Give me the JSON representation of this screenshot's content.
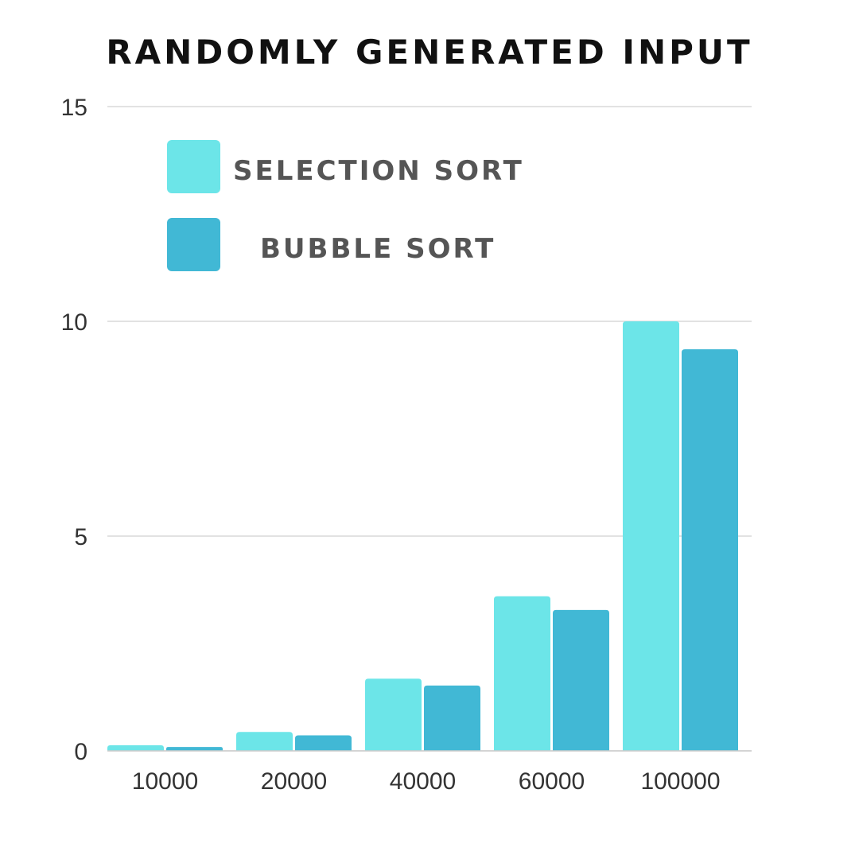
{
  "chart_data": {
    "type": "bar",
    "title": "RANDOMLY GENERATED INPUT",
    "xlabel": "",
    "ylabel": "",
    "categories": [
      "10000",
      "20000",
      "40000",
      "60000",
      "100000"
    ],
    "series": [
      {
        "name": "SELECTION SORT",
        "color": "#6ce5e8",
        "values": [
          0.13,
          0.44,
          1.68,
          3.6,
          10.0
        ]
      },
      {
        "name": "BUBBLE SORT",
        "color": "#41b8d5",
        "values": [
          0.09,
          0.36,
          1.52,
          3.28,
          9.35
        ]
      }
    ],
    "ylim": [
      0,
      15
    ],
    "yticks": [
      "0",
      "5",
      "10",
      "15"
    ],
    "grid": true,
    "legend_position": "top-left"
  }
}
